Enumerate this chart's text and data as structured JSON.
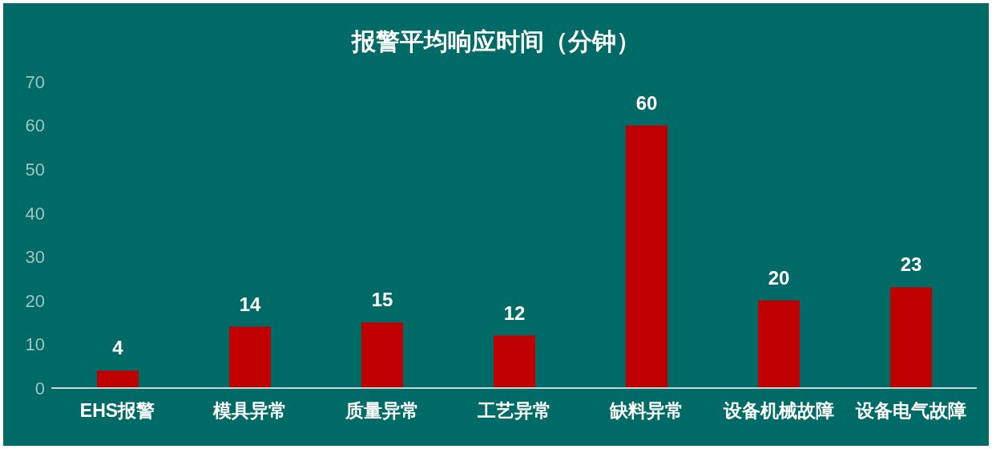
{
  "chart_data": {
    "type": "bar",
    "title": "报警平均响应时间（分钟）",
    "categories": [
      "EHS报警",
      "模具异常",
      "质量异常",
      "工艺异常",
      "缺料异常",
      "设备机械故障",
      "设备电气故障"
    ],
    "values": [
      4,
      14,
      15,
      12,
      60,
      20,
      23
    ],
    "color": "#c00000",
    "ylim": [
      0,
      70
    ],
    "yticks": [
      0,
      10,
      20,
      30,
      40,
      50,
      60,
      70
    ],
    "grid": false,
    "data_labels": true
  }
}
